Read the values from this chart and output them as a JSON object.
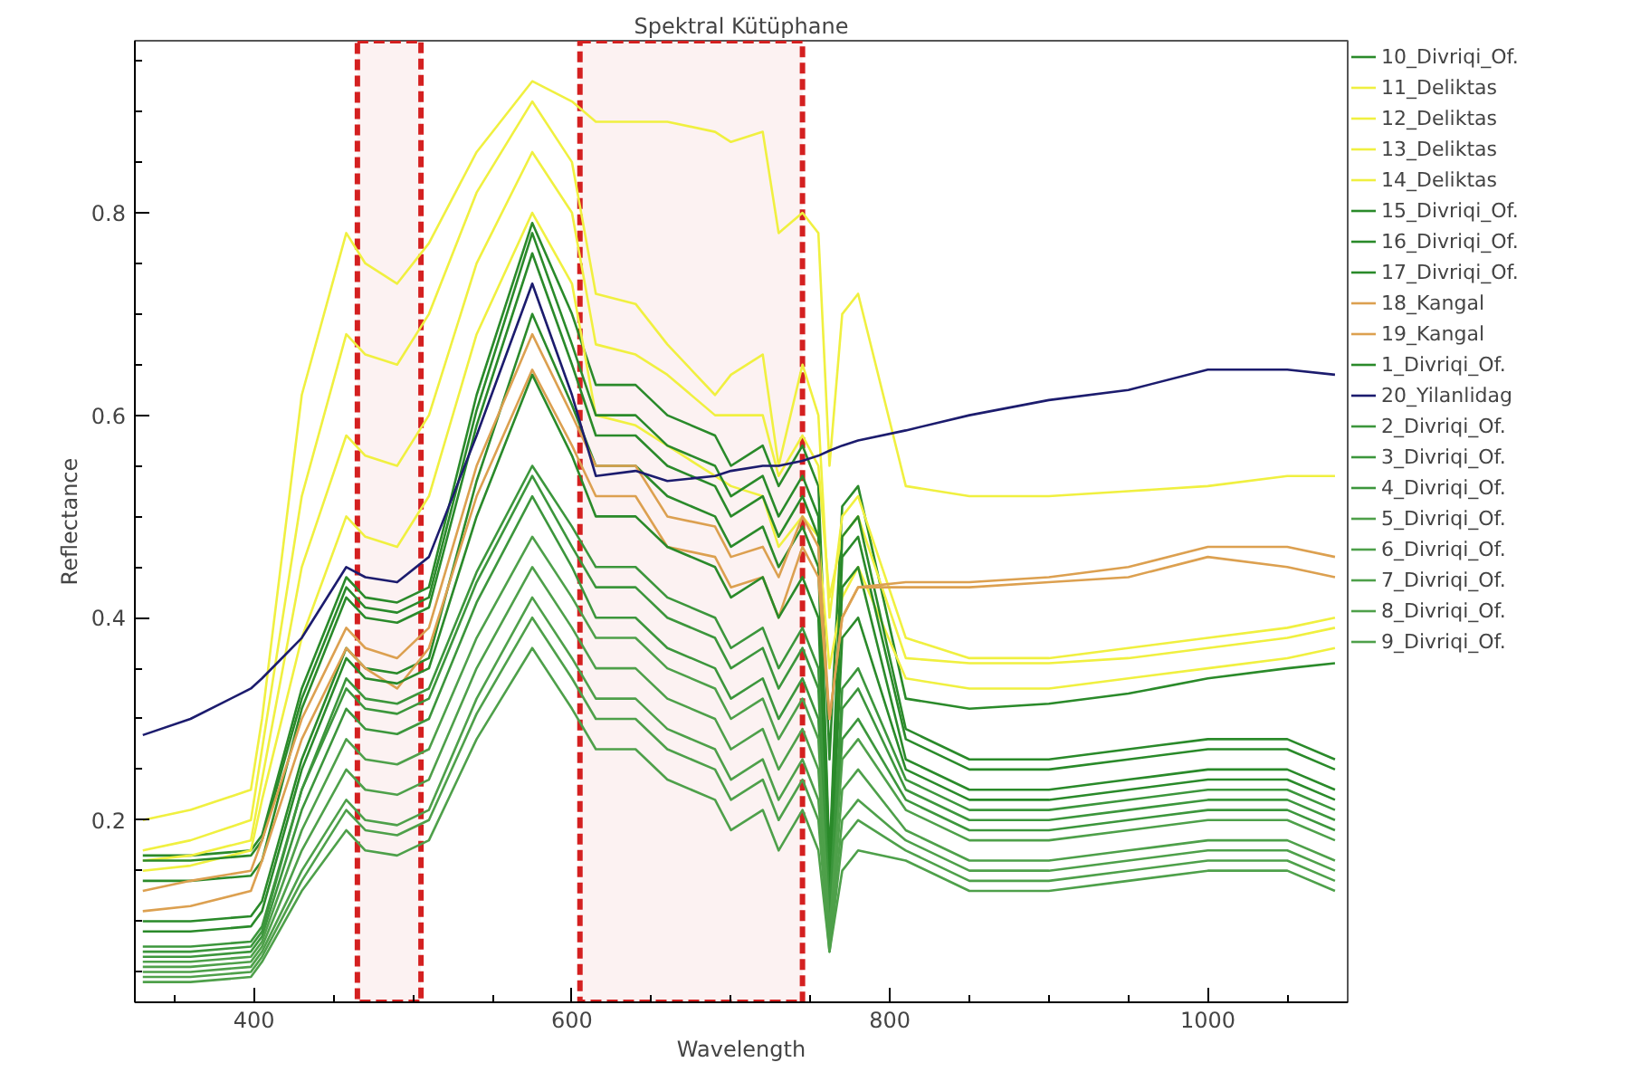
{
  "chart_data": {
    "type": "line",
    "title": "Spektral Kütüphane",
    "xlabel": "Wavelength",
    "ylabel": "Reflectance",
    "x": [
      330,
      360,
      398,
      405,
      430,
      458,
      470,
      490,
      510,
      540,
      575,
      600,
      615,
      640,
      660,
      690,
      700,
      720,
      730,
      745,
      755,
      762,
      770,
      780,
      810,
      850,
      900,
      950,
      1000,
      1050,
      1080
    ],
    "xlim": [
      325,
      1088
    ],
    "ylim": [
      0.02,
      0.97
    ],
    "xticks": [
      400,
      600,
      800,
      1000
    ],
    "yticks": [
      0.2,
      0.4,
      0.6,
      0.8
    ],
    "grid": false,
    "legend": "right",
    "marker": "none",
    "line_style": "solid",
    "bands": [
      {
        "axis": "x",
        "from": 465,
        "to": 505,
        "color": "#d42020"
      },
      {
        "axis": "x",
        "from": 605,
        "to": 745,
        "color": "#d42020"
      }
    ],
    "series": [
      {
        "name": "10_Divriqi_Of.",
        "color": "#2a8a2a",
        "values": [
          0.165,
          0.165,
          0.17,
          0.185,
          0.33,
          0.44,
          0.42,
          0.415,
          0.43,
          0.62,
          0.79,
          0.7,
          0.63,
          0.63,
          0.6,
          0.58,
          0.55,
          0.57,
          0.53,
          0.57,
          0.53,
          0.26,
          0.51,
          0.53,
          0.32,
          0.31,
          0.315,
          0.325,
          0.34,
          0.35,
          0.355
        ]
      },
      {
        "name": "11_Deliktas",
        "color": "#f0f040",
        "values": [
          0.2,
          0.21,
          0.23,
          0.3,
          0.62,
          0.78,
          0.75,
          0.73,
          0.77,
          0.86,
          0.93,
          0.91,
          0.89,
          0.89,
          0.89,
          0.88,
          0.87,
          0.88,
          0.78,
          0.8,
          0.78,
          0.55,
          0.7,
          0.72,
          0.53,
          0.52,
          0.52,
          0.525,
          0.53,
          0.54,
          0.54
        ]
      },
      {
        "name": "12_Deliktas",
        "color": "#f0f040",
        "values": [
          0.17,
          0.18,
          0.2,
          0.27,
          0.52,
          0.68,
          0.66,
          0.65,
          0.7,
          0.82,
          0.91,
          0.85,
          0.72,
          0.71,
          0.67,
          0.62,
          0.64,
          0.66,
          0.55,
          0.65,
          0.6,
          0.4,
          0.5,
          0.52,
          0.38,
          0.36,
          0.36,
          0.37,
          0.38,
          0.39,
          0.4
        ]
      },
      {
        "name": "13_Deliktas",
        "color": "#f0f040",
        "values": [
          0.16,
          0.165,
          0.18,
          0.24,
          0.45,
          0.58,
          0.56,
          0.55,
          0.6,
          0.75,
          0.86,
          0.8,
          0.67,
          0.66,
          0.64,
          0.6,
          0.6,
          0.6,
          0.54,
          0.58,
          0.55,
          0.42,
          0.48,
          0.5,
          0.36,
          0.355,
          0.355,
          0.36,
          0.37,
          0.38,
          0.39
        ]
      },
      {
        "name": "14_Deliktas",
        "color": "#f0f040",
        "values": [
          0.15,
          0.155,
          0.17,
          0.22,
          0.38,
          0.5,
          0.48,
          0.47,
          0.52,
          0.68,
          0.8,
          0.73,
          0.6,
          0.59,
          0.57,
          0.54,
          0.53,
          0.52,
          0.47,
          0.5,
          0.48,
          0.35,
          0.42,
          0.45,
          0.34,
          0.33,
          0.33,
          0.34,
          0.35,
          0.36,
          0.37
        ]
      },
      {
        "name": "15_Divriqi_Of.",
        "color": "#2a8a2a",
        "values": [
          0.16,
          0.16,
          0.165,
          0.18,
          0.32,
          0.43,
          0.41,
          0.405,
          0.42,
          0.605,
          0.78,
          0.67,
          0.6,
          0.6,
          0.57,
          0.55,
          0.52,
          0.54,
          0.5,
          0.54,
          0.5,
          0.16,
          0.48,
          0.5,
          0.29,
          0.26,
          0.26,
          0.27,
          0.28,
          0.28,
          0.26
        ]
      },
      {
        "name": "16_Divriqi_Of.",
        "color": "#2a8a2a",
        "values": [
          0.14,
          0.14,
          0.145,
          0.16,
          0.31,
          0.42,
          0.4,
          0.395,
          0.41,
          0.59,
          0.76,
          0.65,
          0.58,
          0.58,
          0.55,
          0.53,
          0.5,
          0.52,
          0.48,
          0.52,
          0.48,
          0.15,
          0.46,
          0.48,
          0.28,
          0.25,
          0.25,
          0.26,
          0.27,
          0.27,
          0.25
        ]
      },
      {
        "name": "17_Divriqi_Of.",
        "color": "#2a8a2a",
        "values": [
          0.1,
          0.1,
          0.105,
          0.12,
          0.26,
          0.37,
          0.35,
          0.345,
          0.36,
          0.535,
          0.7,
          0.61,
          0.55,
          0.55,
          0.52,
          0.5,
          0.47,
          0.49,
          0.45,
          0.49,
          0.45,
          0.13,
          0.43,
          0.45,
          0.26,
          0.23,
          0.23,
          0.24,
          0.25,
          0.25,
          0.23
        ]
      },
      {
        "name": "18_Kangal",
        "color": "#dca050",
        "values": [
          0.13,
          0.14,
          0.15,
          0.18,
          0.3,
          0.39,
          0.37,
          0.36,
          0.39,
          0.55,
          0.68,
          0.6,
          0.55,
          0.55,
          0.5,
          0.49,
          0.46,
          0.47,
          0.44,
          0.5,
          0.47,
          0.3,
          0.4,
          0.43,
          0.435,
          0.435,
          0.44,
          0.45,
          0.47,
          0.47,
          0.46
        ]
      },
      {
        "name": "19_Kangal",
        "color": "#dca050",
        "values": [
          0.11,
          0.115,
          0.13,
          0.16,
          0.28,
          0.37,
          0.35,
          0.33,
          0.37,
          0.52,
          0.645,
          0.57,
          0.52,
          0.52,
          0.47,
          0.46,
          0.43,
          0.44,
          0.4,
          0.47,
          0.44,
          0.3,
          0.4,
          0.43,
          0.43,
          0.43,
          0.435,
          0.44,
          0.46,
          0.45,
          0.44
        ]
      },
      {
        "name": "1_Divriqi_Of.",
        "color": "#2a8a2a",
        "values": [
          0.09,
          0.09,
          0.095,
          0.11,
          0.25,
          0.36,
          0.34,
          0.335,
          0.35,
          0.5,
          0.64,
          0.56,
          0.5,
          0.5,
          0.47,
          0.45,
          0.42,
          0.44,
          0.4,
          0.44,
          0.4,
          0.12,
          0.38,
          0.4,
          0.25,
          0.22,
          0.22,
          0.23,
          0.24,
          0.24,
          0.22
        ]
      },
      {
        "name": "20_Yilanlidag",
        "color": "#1c1c6e",
        "values": [
          0.284,
          0.3,
          0.33,
          0.34,
          0.38,
          0.45,
          0.44,
          0.435,
          0.46,
          0.58,
          0.73,
          0.62,
          0.54,
          0.545,
          0.535,
          0.54,
          0.545,
          0.55,
          0.55,
          0.555,
          0.56,
          0.565,
          0.57,
          0.575,
          0.585,
          0.6,
          0.615,
          0.625,
          0.645,
          0.645,
          0.64
        ]
      },
      {
        "name": "2_Divriqi_Of.",
        "color": "#3c963c",
        "values": [
          0.075,
          0.075,
          0.08,
          0.095,
          0.23,
          0.34,
          0.32,
          0.315,
          0.33,
          0.445,
          0.55,
          0.49,
          0.45,
          0.45,
          0.42,
          0.4,
          0.37,
          0.39,
          0.35,
          0.39,
          0.35,
          0.11,
          0.33,
          0.35,
          0.24,
          0.21,
          0.21,
          0.22,
          0.23,
          0.23,
          0.21
        ]
      },
      {
        "name": "3_Divriqi_Of.",
        "color": "#3c963c",
        "values": [
          0.07,
          0.07,
          0.075,
          0.09,
          0.23,
          0.33,
          0.31,
          0.305,
          0.32,
          0.435,
          0.54,
          0.47,
          0.43,
          0.43,
          0.4,
          0.38,
          0.35,
          0.37,
          0.33,
          0.37,
          0.33,
          0.1,
          0.31,
          0.33,
          0.23,
          0.2,
          0.2,
          0.21,
          0.22,
          0.22,
          0.2
        ]
      },
      {
        "name": "4_Divriqi_Of.",
        "color": "#3c963c",
        "values": [
          0.065,
          0.065,
          0.07,
          0.085,
          0.21,
          0.31,
          0.29,
          0.285,
          0.3,
          0.415,
          0.52,
          0.45,
          0.4,
          0.4,
          0.37,
          0.35,
          0.32,
          0.34,
          0.3,
          0.34,
          0.3,
          0.09,
          0.28,
          0.3,
          0.22,
          0.19,
          0.19,
          0.2,
          0.21,
          0.21,
          0.19
        ]
      },
      {
        "name": "5_Divriqi_Of.",
        "color": "#4ea04a",
        "values": [
          0.06,
          0.06,
          0.065,
          0.08,
          0.19,
          0.28,
          0.26,
          0.255,
          0.27,
          0.38,
          0.48,
          0.42,
          0.38,
          0.38,
          0.35,
          0.33,
          0.3,
          0.32,
          0.28,
          0.32,
          0.28,
          0.09,
          0.26,
          0.28,
          0.21,
          0.18,
          0.18,
          0.19,
          0.2,
          0.2,
          0.18
        ]
      },
      {
        "name": "6_Divriqi_Of.",
        "color": "#4ea04a",
        "values": [
          0.055,
          0.055,
          0.06,
          0.075,
          0.17,
          0.25,
          0.23,
          0.225,
          0.24,
          0.35,
          0.45,
          0.39,
          0.35,
          0.35,
          0.32,
          0.3,
          0.27,
          0.29,
          0.25,
          0.29,
          0.25,
          0.08,
          0.23,
          0.25,
          0.19,
          0.16,
          0.16,
          0.17,
          0.18,
          0.18,
          0.16
        ]
      },
      {
        "name": "7_Divriqi_Of.",
        "color": "#4ea04a",
        "values": [
          0.05,
          0.05,
          0.055,
          0.07,
          0.15,
          0.22,
          0.2,
          0.195,
          0.21,
          0.32,
          0.42,
          0.36,
          0.32,
          0.32,
          0.29,
          0.27,
          0.24,
          0.26,
          0.22,
          0.26,
          0.22,
          0.08,
          0.2,
          0.22,
          0.18,
          0.15,
          0.15,
          0.16,
          0.17,
          0.17,
          0.15
        ]
      },
      {
        "name": "8_Divriqi_Of.",
        "color": "#4ea04a",
        "values": [
          0.045,
          0.045,
          0.05,
          0.065,
          0.14,
          0.21,
          0.19,
          0.185,
          0.2,
          0.305,
          0.4,
          0.34,
          0.3,
          0.3,
          0.27,
          0.25,
          0.22,
          0.24,
          0.2,
          0.24,
          0.2,
          0.07,
          0.18,
          0.2,
          0.17,
          0.14,
          0.14,
          0.15,
          0.16,
          0.16,
          0.14
        ]
      },
      {
        "name": "9_Divriqi_Of.",
        "color": "#4ea04a",
        "values": [
          0.04,
          0.04,
          0.045,
          0.06,
          0.13,
          0.19,
          0.17,
          0.165,
          0.18,
          0.28,
          0.37,
          0.31,
          0.27,
          0.27,
          0.24,
          0.22,
          0.19,
          0.21,
          0.17,
          0.21,
          0.17,
          0.07,
          0.15,
          0.17,
          0.16,
          0.13,
          0.13,
          0.14,
          0.15,
          0.15,
          0.13
        ]
      }
    ]
  }
}
